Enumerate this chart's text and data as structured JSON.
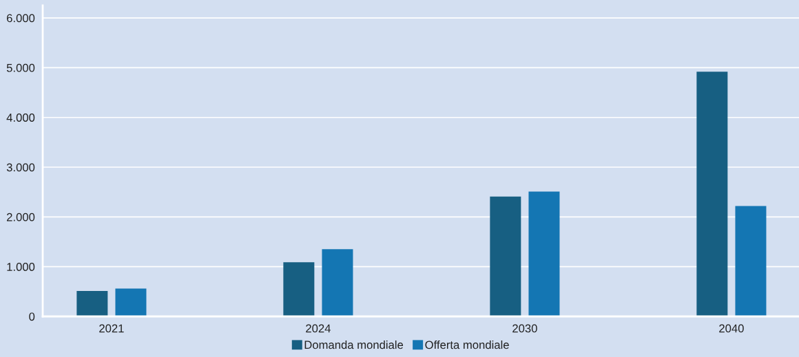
{
  "chart_data": {
    "type": "bar",
    "categories": [
      "2021",
      "2024",
      "2030",
      "2040"
    ],
    "series": [
      {
        "name": "Domanda mondiale",
        "color": "#175f82",
        "values": [
          510,
          1090,
          2410,
          4920
        ]
      },
      {
        "name": "Offerta mondiale",
        "color": "#1476b3",
        "values": [
          560,
          1350,
          2510,
          2220
        ]
      }
    ],
    "ylim": [
      0,
      6250
    ],
    "yticks": [
      {
        "value": 0,
        "label": "0"
      },
      {
        "value": 1000,
        "label": "1.000"
      },
      {
        "value": 2000,
        "label": "2.000"
      },
      {
        "value": 3000,
        "label": "3.000"
      },
      {
        "value": 4000,
        "label": "4.000"
      },
      {
        "value": 5000,
        "label": "5.000"
      },
      {
        "value": 6000,
        "label": "6.000"
      }
    ],
    "grid": "y",
    "legend": "bottom"
  }
}
